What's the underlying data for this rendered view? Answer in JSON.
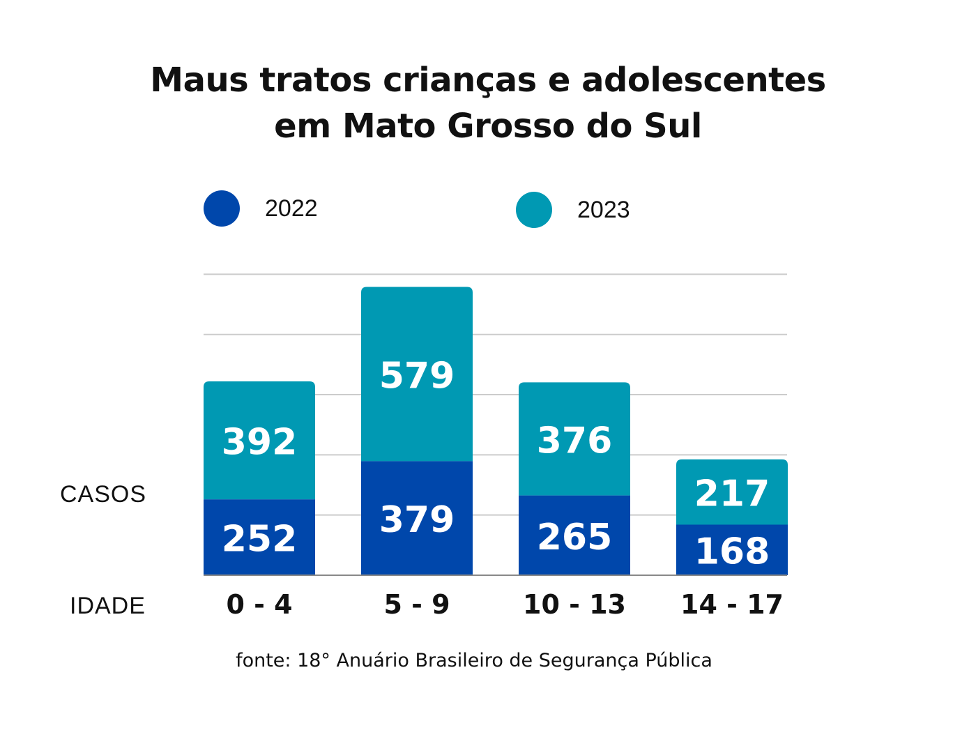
{
  "title_lines": [
    "Maus tratos crianças e adolescentes",
    "em Mato Grosso do Sul"
  ],
  "legend": [
    {
      "label": "2022",
      "color": "#0047ab"
    },
    {
      "label": "2023",
      "color": "#0099b3"
    }
  ],
  "ylabel": "CASOS",
  "xlabel": "IDADE",
  "source": "fonte: 18° Anuário Brasileiro de Segurança Pública",
  "colors": {
    "grid": "#cccccc",
    "baseline": "#888888",
    "value_text": "#ffffff",
    "tick_text": "#111111"
  },
  "chart_data": {
    "type": "bar",
    "stacked": true,
    "title": "Maus tratos crianças e adolescentes em Mato Grosso do Sul",
    "xlabel": "IDADE",
    "ylabel": "CASOS",
    "categories": [
      "0 - 4",
      "5 - 9",
      "10 - 13",
      "14 - 17"
    ],
    "series": [
      {
        "name": "2022",
        "values": [
          252,
          379,
          265,
          168
        ],
        "color": "#0047ab"
      },
      {
        "name": "2023",
        "values": [
          392,
          579,
          376,
          217
        ],
        "color": "#0099b3"
      }
    ],
    "grid": true,
    "legend_position": "top"
  }
}
